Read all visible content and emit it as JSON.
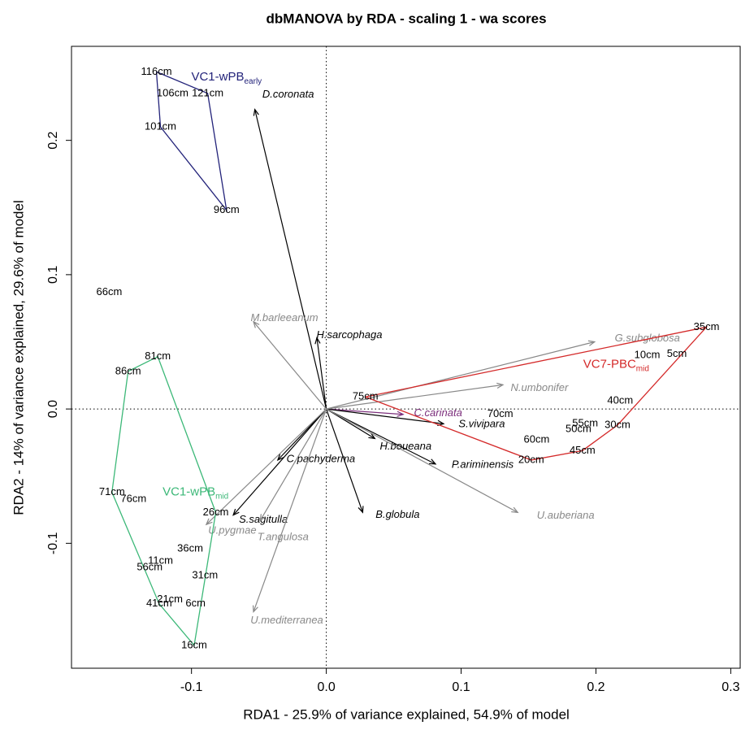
{
  "chart_data": {
    "type": "biplot",
    "title": "dbMANOVA by RDA - scaling 1 - wa scores",
    "x_label": "RDA1 - 25.9% of variance explained, 54.9% of model",
    "y_label": "RDA2 - 14% of variance explained, 29.6% of model",
    "xlim": [
      -0.189,
      0.307
    ],
    "ylim": [
      -0.193,
      0.27
    ],
    "xticks": [
      -0.1,
      {
        "value": 0,
        "label": "0.0"
      },
      0.1,
      0.2,
      0.3
    ],
    "yticks": [
      -0.1,
      {
        "value": 0,
        "label": "0.0"
      },
      0.1,
      0.2
    ],
    "groups": [
      {
        "name": "VC1-wPB",
        "subscript": "early",
        "color": "#23237a",
        "samples": [
          {
            "label": "116cm",
            "x": -0.126,
            "y": 0.251
          },
          {
            "label": "121cm",
            "x": -0.088,
            "y": 0.235
          },
          {
            "label": "106cm",
            "x": -0.114,
            "y": 0.235
          },
          {
            "label": "101cm",
            "x": -0.123,
            "y": 0.21
          },
          {
            "label": "96cm",
            "x": -0.074,
            "y": 0.148
          }
        ]
      },
      {
        "name": "VC1-wPB",
        "subscript": "mid",
        "color": "#3cb878",
        "samples": [
          {
            "label": "81cm",
            "x": -0.125,
            "y": 0.039
          },
          {
            "label": "86cm",
            "x": -0.147,
            "y": 0.028
          },
          {
            "label": "71cm",
            "x": -0.159,
            "y": -0.062
          },
          {
            "label": "76cm",
            "x": -0.143,
            "y": -0.067
          },
          {
            "label": "26cm",
            "x": -0.082,
            "y": -0.077
          },
          {
            "label": "36cm",
            "x": -0.101,
            "y": -0.104
          },
          {
            "label": "11cm",
            "x": -0.123,
            "y": -0.113
          },
          {
            "label": "56cm",
            "x": -0.131,
            "y": -0.118
          },
          {
            "label": "31cm",
            "x": -0.09,
            "y": -0.124
          },
          {
            "label": "21cm",
            "x": -0.116,
            "y": -0.142
          },
          {
            "label": "41cm",
            "x": -0.124,
            "y": -0.145
          },
          {
            "label": "6cm",
            "x": -0.097,
            "y": -0.145
          },
          {
            "label": "16cm",
            "x": -0.098,
            "y": -0.176
          }
        ]
      },
      {
        "name": "VC7-PBC",
        "subscript": "mid",
        "color": "#d42a2a",
        "samples": [
          {
            "label": "75cm",
            "x": 0.029,
            "y": 0.009
          },
          {
            "label": "70cm",
            "x": 0.129,
            "y": -0.004
          },
          {
            "label": "40cm",
            "x": 0.218,
            "y": 0.006
          },
          {
            "label": "35cm",
            "x": 0.282,
            "y": 0.061
          },
          {
            "label": "10cm",
            "x": 0.238,
            "y": 0.04
          },
          {
            "label": "5cm",
            "x": 0.26,
            "y": 0.041
          },
          {
            "label": "55cm",
            "x": 0.192,
            "y": -0.011
          },
          {
            "label": "50cm",
            "x": 0.187,
            "y": -0.015
          },
          {
            "label": "30cm",
            "x": 0.216,
            "y": -0.012
          },
          {
            "label": "60cm",
            "x": 0.156,
            "y": -0.023
          },
          {
            "label": "45cm",
            "x": 0.19,
            "y": -0.031
          },
          {
            "label": "20cm",
            "x": 0.152,
            "y": -0.038
          }
        ]
      }
    ],
    "samples": [
      {
        "label": "66cm",
        "x": -0.161,
        "y": 0.087
      }
    ],
    "species": [
      {
        "name": "D.coronata",
        "x": -0.053,
        "y": 0.223,
        "color": "#000000"
      },
      {
        "name": "H.sarcophaga",
        "x": -0.007,
        "y": 0.053,
        "color": "#000000"
      },
      {
        "name": "C.carinata",
        "x": 0.057,
        "y": -0.004,
        "color": "#7b2d7b"
      },
      {
        "name": "S.vivipara",
        "x": 0.087,
        "y": -0.011,
        "color": "#000000"
      },
      {
        "name": "H.boueana",
        "x": 0.036,
        "y": -0.022,
        "color": "#000000"
      },
      {
        "name": "P.ariminensis",
        "x": 0.081,
        "y": -0.041,
        "color": "#000000"
      },
      {
        "name": "B.globula",
        "x": 0.027,
        "y": -0.077,
        "color": "#000000"
      },
      {
        "name": "C.pachyderma",
        "x": -0.036,
        "y": -0.038,
        "color": "#000000"
      },
      {
        "name": "S.sagitulla",
        "x": -0.069,
        "y": -0.079,
        "color": "#000000"
      },
      {
        "name": "M.barleeanum",
        "x": -0.054,
        "y": 0.065,
        "color": "#888888"
      },
      {
        "name": "G.subglobosa",
        "x": 0.199,
        "y": 0.05,
        "color": "#888888"
      },
      {
        "name": "N.umbonifer",
        "x": 0.131,
        "y": 0.018,
        "color": "#888888"
      },
      {
        "name": "U.auberiana",
        "x": 0.142,
        "y": -0.077,
        "color": "#888888"
      },
      {
        "name": "U.pygmae",
        "x": -0.089,
        "y": -0.086,
        "color": "#888888"
      },
      {
        "name": "T.angulosa",
        "x": -0.049,
        "y": -0.083,
        "color": "#888888"
      },
      {
        "name": "U.mediterranea",
        "x": -0.054,
        "y": -0.151,
        "color": "#888888"
      }
    ]
  }
}
